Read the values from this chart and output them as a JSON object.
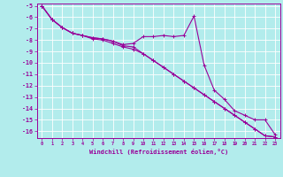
{
  "xlabel": "Windchill (Refroidissement éolien,°C)",
  "bg_color": "#b2ecec",
  "grid_color": "#ffffff",
  "line_color": "#990099",
  "marker": "+",
  "x_values": [
    0,
    1,
    2,
    3,
    4,
    5,
    6,
    7,
    8,
    9,
    10,
    11,
    12,
    13,
    14,
    15,
    16,
    17,
    18,
    19,
    20,
    21,
    22,
    23
  ],
  "line1": [
    -5.0,
    -6.2,
    -6.9,
    -7.4,
    -7.6,
    -7.8,
    -7.9,
    -8.1,
    -8.4,
    -8.3,
    -7.7,
    -7.7,
    -7.6,
    -7.7,
    -7.6,
    -5.9,
    -10.2,
    -12.4,
    -13.2,
    -14.2,
    -14.6,
    -15.0,
    -15.0,
    -16.3
  ],
  "line2": [
    -5.0,
    -6.2,
    -6.9,
    -7.4,
    -7.6,
    -7.8,
    -7.9,
    -8.1,
    -8.5,
    -8.6,
    -9.2,
    -9.8,
    -10.4,
    -11.0,
    -11.6,
    -12.2,
    -12.8,
    -13.4,
    -14.0,
    -14.6,
    -15.2,
    -15.8,
    -16.4,
    -16.5
  ],
  "line3": [
    -5.0,
    -6.2,
    -6.9,
    -7.4,
    -7.6,
    -7.9,
    -8.0,
    -8.3,
    -8.6,
    -8.8,
    -9.2,
    -9.8,
    -10.4,
    -11.0,
    -11.6,
    -12.2,
    -12.8,
    -13.4,
    -14.0,
    -14.6,
    -15.2,
    -15.8,
    -16.4,
    -16.5
  ],
  "ylim": [
    -16.6,
    -4.8
  ],
  "xlim": [
    -0.5,
    23.5
  ],
  "yticks": [
    -5,
    -6,
    -7,
    -8,
    -9,
    -10,
    -11,
    -12,
    -13,
    -14,
    -15,
    -16
  ],
  "xticks": [
    0,
    1,
    2,
    3,
    4,
    5,
    6,
    7,
    8,
    9,
    10,
    11,
    12,
    13,
    14,
    15,
    16,
    17,
    18,
    19,
    20,
    21,
    22,
    23
  ]
}
